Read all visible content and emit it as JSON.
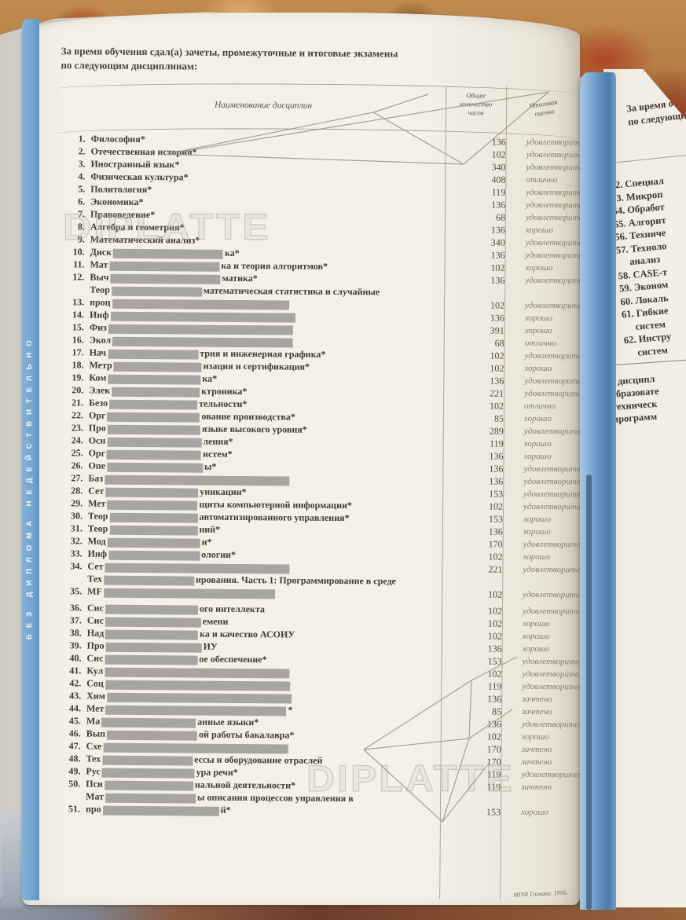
{
  "left_page": {
    "header_line1": "За время обучения сдал(а) зачеты, промежуточные и итоговые экзамены",
    "header_line2": "по следующим дисциплинам:",
    "table": {
      "col_name": "Наименование дисциплин",
      "col_hours_lines": [
        "Общее",
        "количество",
        "часов"
      ],
      "col_grade_lines": [
        "Итоговая",
        "оценка"
      ],
      "rows": [
        {
          "num": "1.",
          "lines": [
            {
              "pre": "Философия*",
              "red": 0,
              "post": ""
            }
          ],
          "hours": "136",
          "grade": "удовлетворительно"
        },
        {
          "num": "2.",
          "lines": [
            {
              "pre": "Отечественная история*",
              "red": 0,
              "post": ""
            }
          ],
          "hours": "102",
          "grade": "удовлетворительно"
        },
        {
          "num": "3.",
          "lines": [
            {
              "pre": "Иностранный язык*",
              "red": 0,
              "post": ""
            }
          ],
          "hours": "340",
          "grade": "удовлетворительно"
        },
        {
          "num": "4.",
          "lines": [
            {
              "pre": "Физическая культура*",
              "red": 0,
              "post": ""
            }
          ],
          "hours": "408",
          "grade": "отлично"
        },
        {
          "num": "5.",
          "lines": [
            {
              "pre": "Политология*",
              "red": 0,
              "post": ""
            }
          ],
          "hours": "119",
          "grade": "удовлетворительно"
        },
        {
          "num": "6.",
          "lines": [
            {
              "pre": "Экономика*",
              "red": 0,
              "post": ""
            }
          ],
          "hours": "136",
          "grade": "удовлетворительно"
        },
        {
          "num": "7.",
          "lines": [
            {
              "pre": "Правоведение*",
              "red": 0,
              "post": ""
            }
          ],
          "hours": "68",
          "grade": "удовлетворительно"
        },
        {
          "num": "8.",
          "lines": [
            {
              "pre": "Алгебра и геометрия*",
              "red": 0,
              "post": ""
            }
          ],
          "hours": "136",
          "grade": "хорошо"
        },
        {
          "num": "9.",
          "lines": [
            {
              "pre": "Математический анализ*",
              "red": 0,
              "post": ""
            }
          ],
          "hours": "340",
          "grade": "удовлетворительно"
        },
        {
          "num": "10.",
          "lines": [
            {
              "pre": "Диск",
              "red": 140,
              "post": "ка*"
            }
          ],
          "hours": "136",
          "grade": "удовлетворительно"
        },
        {
          "num": "11.",
          "lines": [
            {
              "pre": "Мат",
              "red": 140,
              "post": "ка и теория алгоритмов*"
            }
          ],
          "hours": "102",
          "grade": "хорошо"
        },
        {
          "num": "12.",
          "lines": [
            {
              "pre": "Выч",
              "red": 140,
              "post": "матика*"
            }
          ],
          "hours": "136",
          "grade": "удовлетворительно"
        },
        {
          "num": "13.",
          "lines": [
            {
              "pre": "Теор",
              "red": 115,
              "post": "математическая статистика и случайные"
            },
            {
              "pre": "проц",
              "red": 225,
              "post": ""
            }
          ],
          "hours": "102",
          "grade": "удовлетворительно"
        },
        {
          "num": "14.",
          "lines": [
            {
              "pre": "Инф",
              "red": 235,
              "post": ""
            }
          ],
          "hours": "136",
          "grade": "хорошо"
        },
        {
          "num": "15.",
          "lines": [
            {
              "pre": "Физ",
              "red": 235,
              "post": ""
            }
          ],
          "hours": "391",
          "grade": "хорошо"
        },
        {
          "num": "16.",
          "lines": [
            {
              "pre": "Экол",
              "red": 230,
              "post": ""
            }
          ],
          "hours": "68",
          "grade": "отлично"
        },
        {
          "num": "17.",
          "lines": [
            {
              "pre": "Нач",
              "red": 115,
              "post": "трия и инженерная графика*"
            }
          ],
          "hours": "102",
          "grade": "удовлетворительно"
        },
        {
          "num": "18.",
          "lines": [
            {
              "pre": "Метр",
              "red": 112,
              "post": "изация и сертификация*"
            }
          ],
          "hours": "102",
          "grade": "хорошо"
        },
        {
          "num": "19.",
          "lines": [
            {
              "pre": "Ком",
              "red": 118,
              "post": "ка*"
            }
          ],
          "hours": "136",
          "grade": "удовлетворительно"
        },
        {
          "num": "20.",
          "lines": [
            {
              "pre": "Элек",
              "red": 112,
              "post": "ктроника*"
            }
          ],
          "hours": "221",
          "grade": "удовлетворительно"
        },
        {
          "num": "21.",
          "lines": [
            {
              "pre": "Безо",
              "red": 112,
              "post": "тельности*"
            }
          ],
          "hours": "102",
          "grade": "отлично"
        },
        {
          "num": "22.",
          "lines": [
            {
              "pre": "Орг",
              "red": 118,
              "post": "ование производства*"
            }
          ],
          "hours": "85",
          "grade": "хорошо"
        },
        {
          "num": "23.",
          "lines": [
            {
              "pre": "Про",
              "red": 118,
              "post": "языке высокого уровня*"
            }
          ],
          "hours": "289",
          "grade": "удовлетворительно"
        },
        {
          "num": "24.",
          "lines": [
            {
              "pre": "Осн",
              "red": 120,
              "post": "ления*"
            }
          ],
          "hours": "119",
          "grade": "хорошо"
        },
        {
          "num": "25.",
          "lines": [
            {
              "pre": "Орг",
              "red": 120,
              "post": "истем*"
            }
          ],
          "hours": "136",
          "grade": "хорошо"
        },
        {
          "num": "26.",
          "lines": [
            {
              "pre": "Опе",
              "red": 122,
              "post": "ы*"
            }
          ],
          "hours": "136",
          "grade": "удовлетворительно"
        },
        {
          "num": "27.",
          "lines": [
            {
              "pre": "Баз",
              "red": 235,
              "post": ""
            }
          ],
          "hours": "136",
          "grade": "удовлетворительно"
        },
        {
          "num": "28.",
          "lines": [
            {
              "pre": "Сет",
              "red": 118,
              "post": "уникации*"
            }
          ],
          "hours": "153",
          "grade": "удовлетворительно"
        },
        {
          "num": "29.",
          "lines": [
            {
              "pre": "Мет",
              "red": 115,
              "post": "щиты компьютерной информации*"
            }
          ],
          "hours": "102",
          "grade": "удовлетворительно"
        },
        {
          "num": "30.",
          "lines": [
            {
              "pre": "Теор",
              "red": 112,
              "post": "автоматизированного управления*"
            }
          ],
          "hours": "153",
          "grade": "хорошо"
        },
        {
          "num": "31.",
          "lines": [
            {
              "pre": "Теор",
              "red": 112,
              "post": "ний*"
            }
          ],
          "hours": "136",
          "grade": "хорошо"
        },
        {
          "num": "32.",
          "lines": [
            {
              "pre": "Мод",
              "red": 118,
              "post": "и*"
            }
          ],
          "hours": "170",
          "grade": "удовлетворительно"
        },
        {
          "num": "33.",
          "lines": [
            {
              "pre": "Инф",
              "red": 116,
              "post": "ологии*"
            }
          ],
          "hours": "102",
          "grade": "хорошо"
        },
        {
          "num": "34.",
          "lines": [
            {
              "pre": "Сет",
              "red": 235,
              "post": ""
            }
          ],
          "hours": "221",
          "grade": "удовлетворительно"
        },
        {
          "num": "35.",
          "lines": [
            {
              "pre": "Тех",
              "red": 115,
              "post": "ирования. Часть 1: Программирование в среде"
            },
            {
              "pre": "MF",
              "red": 218,
              "post": ""
            }
          ],
          "hours": "102",
          "grade": "удовлетворительно"
        },
        {
          "num": "36.",
          "gap": true,
          "lines": [
            {
              "pre": "Сис",
              "red": 118,
              "post": "ого интеллекта"
            }
          ],
          "hours": "102",
          "grade": "удовлетворительно"
        },
        {
          "num": "37.",
          "lines": [
            {
              "pre": "Сис",
              "red": 122,
              "post": "емени"
            }
          ],
          "hours": "102",
          "grade": "хорошо"
        },
        {
          "num": "38.",
          "lines": [
            {
              "pre": "Над",
              "red": 118,
              "post": "ка и качество АСОИУ"
            }
          ],
          "hours": "102",
          "grade": "хорошо"
        },
        {
          "num": "39.",
          "lines": [
            {
              "pre": "Про",
              "red": 122,
              "post": "ИУ"
            }
          ],
          "hours": "136",
          "grade": "хорошо"
        },
        {
          "num": "40.",
          "lines": [
            {
              "pre": "Сис",
              "red": 118,
              "post": "ое обеспечение*"
            }
          ],
          "hours": "153",
          "grade": "удовлетворительно"
        },
        {
          "num": "41.",
          "lines": [
            {
              "pre": "Кул",
              "red": 235,
              "post": ""
            }
          ],
          "hours": "102",
          "grade": "удовлетворительно"
        },
        {
          "num": "42.",
          "lines": [
            {
              "pre": "Соц",
              "red": 235,
              "post": ""
            }
          ],
          "hours": "119",
          "grade": "удовлетворительно"
        },
        {
          "num": "43.",
          "lines": [
            {
              "pre": "Хим",
              "red": 235,
              "post": ""
            }
          ],
          "hours": "136",
          "grade": "зачтено"
        },
        {
          "num": "44.",
          "lines": [
            {
              "pre": "Мет",
              "red": 230,
              "post": "*"
            }
          ],
          "hours": "85",
          "grade": "зачтено"
        },
        {
          "num": "45.",
          "lines": [
            {
              "pre": "Ма",
              "red": 120,
              "post": "анные языки*"
            }
          ],
          "hours": "136",
          "grade": "удовлетворительно"
        },
        {
          "num": "46.",
          "lines": [
            {
              "pre": "Вып",
              "red": 115,
              "post": "ой работы бакалавра*"
            }
          ],
          "hours": "102",
          "grade": "хорошо"
        },
        {
          "num": "47.",
          "lines": [
            {
              "pre": "Схе",
              "red": 235,
              "post": ""
            }
          ],
          "hours": "170",
          "grade": "зачтено"
        },
        {
          "num": "48.",
          "lines": [
            {
              "pre": "Тех",
              "red": 115,
              "post": "ессы и оборудование отраслей"
            }
          ],
          "hours": "170",
          "grade": "зачтено"
        },
        {
          "num": "49.",
          "lines": [
            {
              "pre": "Рус",
              "red": 118,
              "post": "ура речи*"
            }
          ],
          "hours": "119",
          "grade": "удовлетворительно"
        },
        {
          "num": "50.",
          "lines": [
            {
              "pre": "Пси",
              "red": 113,
              "post": "нальной деятельности*"
            }
          ],
          "hours": "119",
          "grade": "зачтено"
        },
        {
          "num": "51.",
          "lines": [
            {
              "pre": "Мат",
              "red": 115,
              "post": "ы описания процессов управления в"
            },
            {
              "pre": "про",
              "red": 148,
              "post": "й*"
            }
          ],
          "hours": "153",
          "grade": "хорошо"
        }
      ]
    },
    "imprint": "МПФ Гознака. 1996."
  },
  "security": {
    "stripe_text": "БЕЗ ДИПЛОМА НЕДЕЙСТВИТЕЛЬНО",
    "watermark_text": "DIPLATTE"
  },
  "right_page": {
    "header_line1": "За время обу",
    "header_line2": "по следующи",
    "items": [
      {
        "num": "52.",
        "text": "Специал",
        "wrap": ""
      },
      {
        "num": "53.",
        "text": "Микроп",
        "wrap": ""
      },
      {
        "num": "54.",
        "text": "Обработ",
        "wrap": ""
      },
      {
        "num": "55.",
        "text": "Алгорит",
        "wrap": ""
      },
      {
        "num": "56.",
        "text": "Техниче",
        "wrap": ""
      },
      {
        "num": "57.",
        "text": "Техноло",
        "wrap": "анализ"
      },
      {
        "num": "58.",
        "text": "CASE-т",
        "wrap": ""
      },
      {
        "num": "59.",
        "text": "Эконом",
        "wrap": ""
      },
      {
        "num": "60.",
        "text": "Локаль",
        "wrap": ""
      },
      {
        "num": "61.",
        "text": "Гибкие",
        "wrap": "систем"
      },
      {
        "num": "62.",
        "text": "Инстру",
        "wrap": "систем"
      }
    ],
    "footnote_lines": [
      "* дисципл",
      "образовате",
      "техническ",
      "программ"
    ]
  },
  "colors": {
    "stripe_blue": "#74a6d0",
    "gutter_blue": "#5f8fc0",
    "page_cream": "#f3f0e8",
    "redaction_gray": "#a7a5a2",
    "carpet_red": "#a83c22",
    "carpet_tan": "#c08b4e"
  }
}
